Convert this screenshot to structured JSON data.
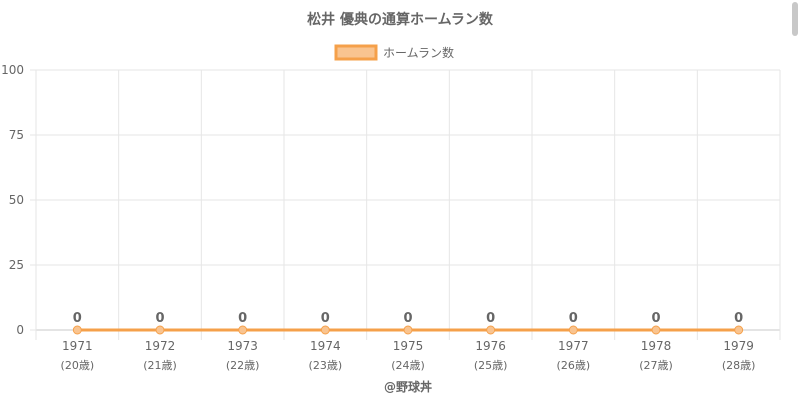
{
  "chart_data": {
    "type": "line",
    "title": "松井 優典の通算ホームラン数",
    "legend_position": "top",
    "x_labels": [
      "1971",
      "1972",
      "1973",
      "1974",
      "1975",
      "1976",
      "1977",
      "1978",
      "1979"
    ],
    "x_sublabels": [
      "(20歳)",
      "(21歳)",
      "(22歳)",
      "(23歳)",
      "(24歳)",
      "(25歳)",
      "(26歳)",
      "(27歳)",
      "(28歳)"
    ],
    "series": [
      {
        "name": "ホームラン数",
        "values": [
          0,
          0,
          0,
          0,
          0,
          0,
          0,
          0,
          0
        ],
        "color": "#f5a04a"
      }
    ],
    "ylim": [
      0,
      100
    ],
    "yticks": [
      0,
      25,
      50,
      75,
      100
    ],
    "grid": true,
    "data_labels": true
  },
  "credit": "@野球丼",
  "colors": {
    "grid": "#e6e6e6",
    "axis_text": "#666666",
    "label_text": "#666666",
    "legend_fill": "#f9c490"
  }
}
